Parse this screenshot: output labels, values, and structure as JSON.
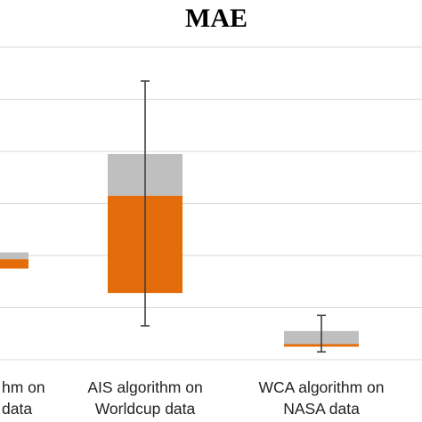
{
  "chart_data": {
    "type": "box",
    "title": "MAE",
    "xlabel": "",
    "ylabel": "",
    "grid": true,
    "legend": "none",
    "ylim": [
      0,
      6
    ],
    "gridlines": [
      1,
      2,
      3,
      4,
      5,
      6
    ],
    "categories": [
      {
        "lines": [
          "AIS algorithm on",
          "NASA data"
        ],
        "visible_lines": [
          "hm on",
          "data"
        ]
      },
      {
        "lines": [
          "AIS algorithm on",
          "Worldcup data"
        ],
        "visible_lines": [
          "AIS algorithm on",
          "Worldcup data"
        ]
      },
      {
        "lines": [
          "WCA algorithm on",
          "NASA data"
        ],
        "visible_lines": [
          "WCA algorithm on",
          "NASA data"
        ]
      }
    ],
    "series": [
      {
        "role": "lower-box",
        "color": "#E46C0A",
        "ranges": [
          [
            1.75,
            1.93
          ],
          [
            1.28,
            3.15
          ],
          [
            0.25,
            0.3
          ]
        ]
      },
      {
        "role": "upper-box",
        "color": "#BFBFBF",
        "ranges": [
          [
            1.93,
            2.06
          ],
          [
            3.15,
            3.95
          ],
          [
            0.3,
            0.55
          ]
        ]
      }
    ],
    "whiskers": [
      null,
      [
        0.65,
        5.35
      ],
      [
        0.15,
        0.85
      ]
    ]
  }
}
